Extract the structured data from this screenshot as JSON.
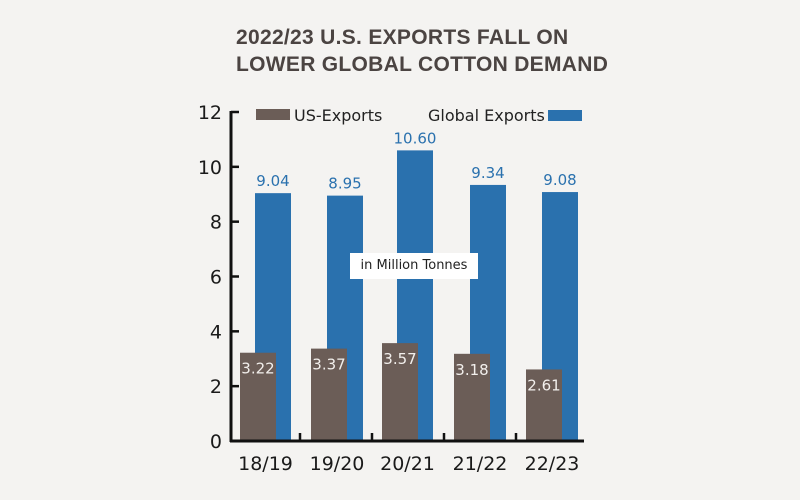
{
  "chart_data": {
    "type": "bar",
    "title_lines": [
      "2022/23 U.S. EXPORTS FALL ON",
      "LOWER GLOBAL COTTON DEMAND"
    ],
    "categories": [
      "18/19",
      "19/20",
      "20/21",
      "21/22",
      "22/23"
    ],
    "series": [
      {
        "name": "US-Exports",
        "color": "#6b5d57",
        "values": [
          3.22,
          3.37,
          3.57,
          3.18,
          2.61
        ],
        "labels": [
          "3.22",
          "3.37",
          "3.57",
          "3.18",
          "2.61"
        ]
      },
      {
        "name": "Global Exports",
        "color": "#2a71ae",
        "values": [
          9.04,
          8.95,
          10.6,
          9.34,
          9.08
        ],
        "labels": [
          "9.04",
          "8.95",
          "10.60",
          "9.34",
          "9.08"
        ]
      }
    ],
    "ylim": [
      0,
      12
    ],
    "yticks": [
      "0",
      "2",
      "4",
      "6",
      "8",
      "10",
      "12"
    ],
    "unit_note": "in Million Tonnes",
    "legend": "top",
    "grid": false
  }
}
